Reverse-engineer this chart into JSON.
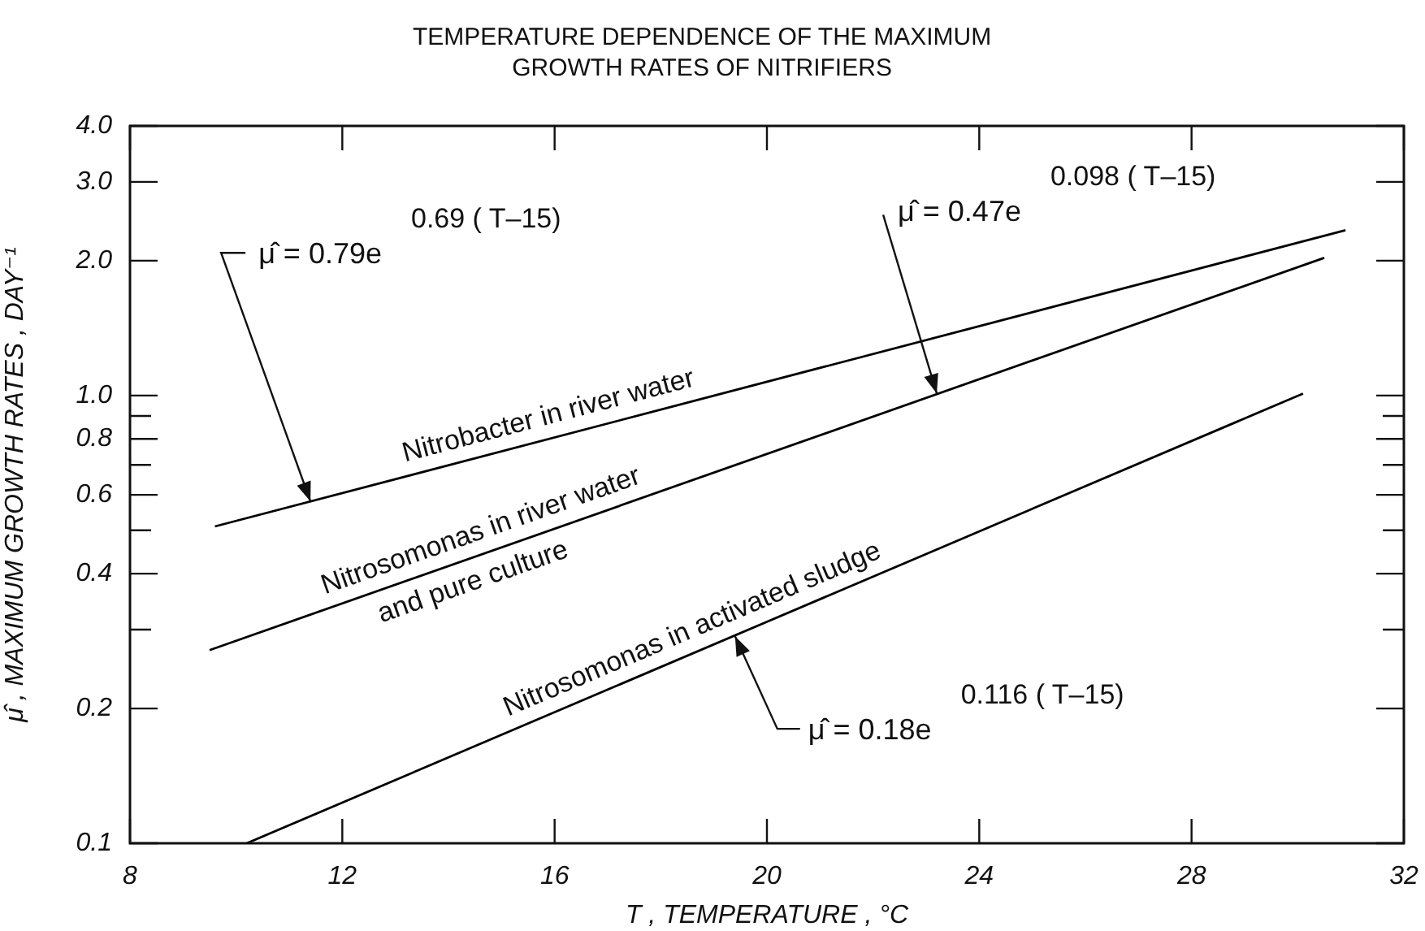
{
  "chart_data": {
    "type": "line",
    "title": "TEMPERATURE DEPENDENCE OF THE MAXIMUM\nGROWTH RATES OF NITRIFIERS",
    "xlabel": "T , TEMPERATURE , °C",
    "ylabel": "μ̂ , MAXIMUM GROWTH RATES , DAY⁻¹",
    "log": "y",
    "marker": "none",
    "xlim": [
      8,
      32
    ],
    "xticks": [
      8,
      12,
      16,
      20,
      24,
      28,
      32
    ],
    "ylim": [
      0.1,
      4
    ],
    "yticks": [
      0.1,
      0.2,
      {
        "value": 0.3,
        "label": null
      },
      0.4,
      {
        "value": 0.5,
        "label": null
      },
      0.6,
      {
        "value": 0.7,
        "label": null
      },
      0.8,
      {
        "value": 0.9,
        "label": null
      },
      {
        "value": 1,
        "label": "1.0"
      },
      {
        "value": 2,
        "label": "2.0"
      },
      {
        "value": 3,
        "label": "3.0"
      },
      {
        "value": 4,
        "label": "4.0"
      }
    ],
    "series": [
      {
        "name": "Nitrobacter in river water",
        "color": "#000000",
        "x": [
          9.6,
          30.9
        ],
        "values": [
          0.51,
          2.34
        ]
      },
      {
        "name": "Nitrosomonas in river water\nand pure culture",
        "color": "#000000",
        "x": [
          9.5,
          30.5
        ],
        "values": [
          0.27,
          2.03
        ]
      },
      {
        "name": "Nitrosomonas in activated sludge",
        "color": "#000000",
        "x": [
          10.2,
          30.1
        ],
        "values": [
          0.1,
          1.01
        ]
      }
    ],
    "annotations": [
      {
        "text": "μ̂ = 0.79e$^{0.69 ( T–15)}$",
        "x": 11.4,
        "y": 0.58
      },
      {
        "text": "μ̂ = 0.47e$^{0.098 ( T–15)}$",
        "x": 23.2,
        "y": 1.01
      },
      {
        "text": "μ̂ = 0.18e$^{0.116 ( T–15)}$",
        "x": 19.4,
        "y": 0.29
      }
    ]
  }
}
